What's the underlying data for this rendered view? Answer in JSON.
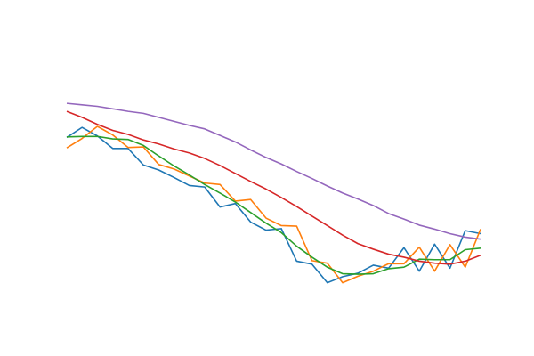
{
  "chart_data": {
    "type": "line",
    "title": "",
    "xlabel": "",
    "ylabel": "",
    "axes_visible": false,
    "grid": false,
    "legend": "none",
    "xlim": [
      0,
      27
    ],
    "ylim": [
      -2.7,
      2.7
    ],
    "x": [
      0,
      1,
      2,
      3,
      4,
      5,
      6,
      7,
      8,
      9,
      10,
      11,
      12,
      13,
      14,
      15,
      16,
      17,
      18,
      19,
      20,
      21,
      22,
      23,
      24,
      25,
      26,
      27
    ],
    "series": [
      {
        "color": "#1f77b4",
        "values": [
          0.81,
          1.01,
          0.84,
          0.59,
          0.59,
          0.26,
          0.16,
          0.01,
          -0.15,
          -0.18,
          -0.58,
          -0.51,
          -0.88,
          -1.04,
          -1.01,
          -1.66,
          -1.72,
          -2.09,
          -1.97,
          -1.9,
          -1.74,
          -1.8,
          -1.39,
          -1.86,
          -1.32,
          -1.8,
          -1.05,
          -1.11
        ]
      },
      {
        "color": "#ff7f0e",
        "values": [
          0.6,
          0.79,
          1.03,
          0.86,
          0.61,
          0.62,
          0.27,
          0.18,
          0.04,
          -0.1,
          -0.13,
          -0.46,
          -0.43,
          -0.8,
          -0.95,
          -0.96,
          -1.65,
          -1.7,
          -2.09,
          -1.96,
          -1.86,
          -1.71,
          -1.71,
          -1.38,
          -1.86,
          -1.33,
          -1.78,
          -1.02
        ]
      },
      {
        "color": "#2ca02c",
        "values": [
          0.82,
          0.83,
          0.83,
          0.78,
          0.77,
          0.65,
          0.44,
          0.24,
          0.06,
          -0.13,
          -0.3,
          -0.48,
          -0.69,
          -0.9,
          -1.09,
          -1.36,
          -1.58,
          -1.78,
          -1.91,
          -1.92,
          -1.91,
          -1.81,
          -1.78,
          -1.62,
          -1.63,
          -1.63,
          -1.43,
          -1.4
        ]
      },
      {
        "color": "#d62728",
        "values": [
          1.33,
          1.21,
          1.07,
          0.95,
          0.87,
          0.76,
          0.68,
          0.58,
          0.5,
          0.39,
          0.25,
          0.09,
          -0.07,
          -0.22,
          -0.39,
          -0.57,
          -0.76,
          -0.95,
          -1.14,
          -1.31,
          -1.42,
          -1.52,
          -1.58,
          -1.66,
          -1.7,
          -1.72,
          -1.66,
          -1.54
        ]
      },
      {
        "color": "#9467bd",
        "values": [
          1.49,
          1.46,
          1.43,
          1.38,
          1.33,
          1.29,
          1.21,
          1.13,
          1.05,
          0.98,
          0.85,
          0.72,
          0.56,
          0.41,
          0.28,
          0.13,
          -0.01,
          -0.16,
          -0.3,
          -0.42,
          -0.55,
          -0.71,
          -0.82,
          -0.94,
          -1.02,
          -1.11,
          -1.18,
          -1.22
        ]
      }
    ]
  }
}
